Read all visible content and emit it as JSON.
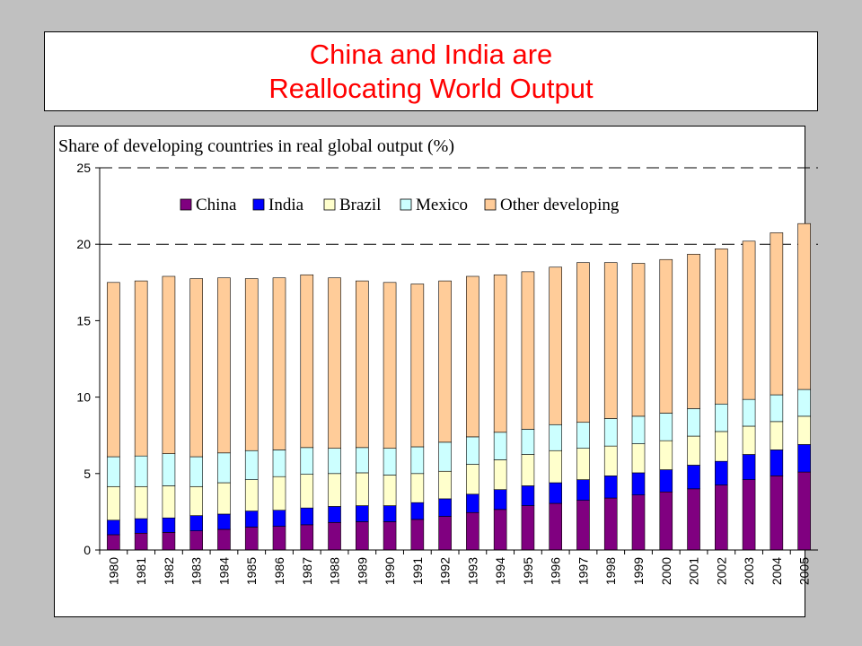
{
  "slide": {
    "title_line1": "China and India are",
    "title_line2": "Reallocating World Output"
  },
  "colors": {
    "China": "#800080",
    "India": "#0000ff",
    "Brazil": "#ffffcc",
    "Mexico": "#ccffff",
    "Other developing": "#ffcc99"
  },
  "chart_data": {
    "type": "bar",
    "stacked": true,
    "title": "Share of developing countries in real global output  (%)",
    "xlabel": "",
    "ylabel": "",
    "ylim": [
      0,
      25
    ],
    "yticks": [
      0,
      5,
      10,
      15,
      20,
      25
    ],
    "grid": "dashed horizontal at 20 and 25",
    "legend_position": "top",
    "categories": [
      "1980",
      "1981",
      "1982",
      "1983",
      "1984",
      "1985",
      "1986",
      "1987",
      "1988",
      "1989",
      "1990",
      "1991",
      "1992",
      "1993",
      "1994",
      "1995",
      "1996",
      "1997",
      "1998",
      "1999",
      "2000",
      "2001",
      "2002",
      "2003",
      "2004",
      "2005"
    ],
    "series": [
      {
        "name": "China",
        "values": [
          1.0,
          1.1,
          1.15,
          1.25,
          1.35,
          1.5,
          1.55,
          1.65,
          1.8,
          1.85,
          1.85,
          2.0,
          2.2,
          2.45,
          2.65,
          2.9,
          3.05,
          3.25,
          3.4,
          3.6,
          3.8,
          4.0,
          4.25,
          4.6,
          4.85,
          5.1
        ]
      },
      {
        "name": "India",
        "values": [
          0.95,
          0.95,
          0.95,
          1.0,
          1.0,
          1.05,
          1.05,
          1.1,
          1.05,
          1.05,
          1.05,
          1.1,
          1.15,
          1.2,
          1.3,
          1.3,
          1.35,
          1.35,
          1.45,
          1.45,
          1.45,
          1.55,
          1.55,
          1.65,
          1.7,
          1.8
        ]
      },
      {
        "name": "Brazil",
        "values": [
          2.2,
          2.1,
          2.1,
          1.9,
          2.05,
          2.05,
          2.2,
          2.2,
          2.15,
          2.15,
          2.0,
          1.9,
          1.8,
          1.95,
          1.95,
          2.05,
          2.1,
          2.05,
          1.95,
          1.9,
          1.9,
          1.9,
          1.95,
          1.85,
          1.85,
          1.85
        ]
      },
      {
        "name": "Mexico",
        "values": [
          1.95,
          2.0,
          2.1,
          1.95,
          1.95,
          1.9,
          1.75,
          1.75,
          1.65,
          1.65,
          1.75,
          1.75,
          1.9,
          1.8,
          1.8,
          1.65,
          1.7,
          1.7,
          1.8,
          1.8,
          1.8,
          1.8,
          1.8,
          1.75,
          1.75,
          1.75
        ]
      },
      {
        "name": "Other developing",
        "values": [
          11.4,
          11.45,
          11.6,
          11.65,
          11.45,
          11.25,
          11.25,
          11.3,
          11.15,
          10.9,
          10.85,
          10.65,
          10.55,
          10.5,
          10.3,
          10.3,
          10.3,
          10.45,
          10.2,
          10.0,
          10.05,
          10.1,
          10.15,
          10.35,
          10.6,
          10.85
        ]
      }
    ]
  }
}
